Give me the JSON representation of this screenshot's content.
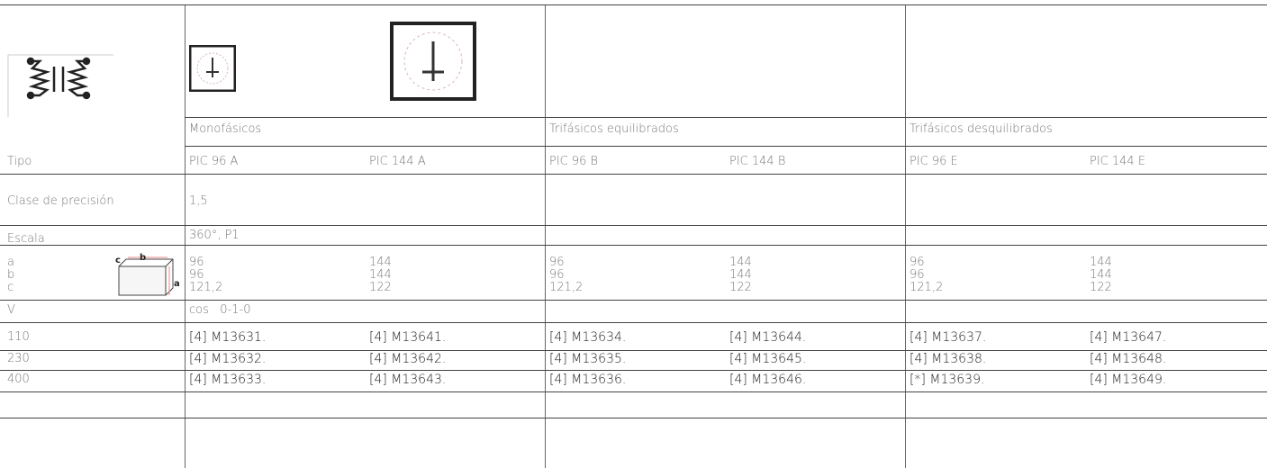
{
  "table": {
    "groups": [
      "Monofásicos",
      "Trifásicos equilibrados",
      "Trifásicos desquilibrados"
    ],
    "type_label": "Tipo",
    "types": [
      "PIC 96 A",
      "PIC 144 A",
      "PIC 96 B",
      "PIC 144 B",
      "PIC 96 E",
      "PIC 144 E"
    ],
    "precision": {
      "label": "Clase de precisión",
      "value": "1,5"
    },
    "scale": {
      "label": "Escala",
      "value": "360°, P1"
    },
    "dimensions": {
      "cube_labels": [
        "c",
        "b",
        "a"
      ],
      "rows": [
        {
          "label": "a",
          "values": [
            "96",
            "144",
            "96",
            "144",
            "96",
            "144"
          ]
        },
        {
          "label": "b",
          "values": [
            "96",
            "144",
            "96",
            "144",
            "96",
            "144"
          ]
        },
        {
          "label": "c",
          "values": [
            "121,2",
            "122",
            "121,2",
            "122",
            "121,2",
            "122"
          ]
        }
      ]
    },
    "voltage": {
      "label": "V",
      "value": "cos   0-1-0"
    },
    "codes": [
      {
        "voltage": "110",
        "items": [
          "[4] M13631.",
          "[4] M13641.",
          "[4] M13634.",
          "[4] M13644.",
          "[4] M13637.",
          "[4] M13647."
        ]
      },
      {
        "voltage": "230",
        "items": [
          "[4] M13632.",
          "[4] M13642.",
          "[4] M13635.",
          "[4] M13645.",
          "[4] M13638.",
          "[4] M13648."
        ]
      },
      {
        "voltage": "400",
        "items": [
          "[4] M13633.",
          "[4] M13643.",
          "[4] M13636.",
          "[4] M13646.",
          "[*] M13639.",
          "[4] M13649."
        ]
      }
    ]
  }
}
